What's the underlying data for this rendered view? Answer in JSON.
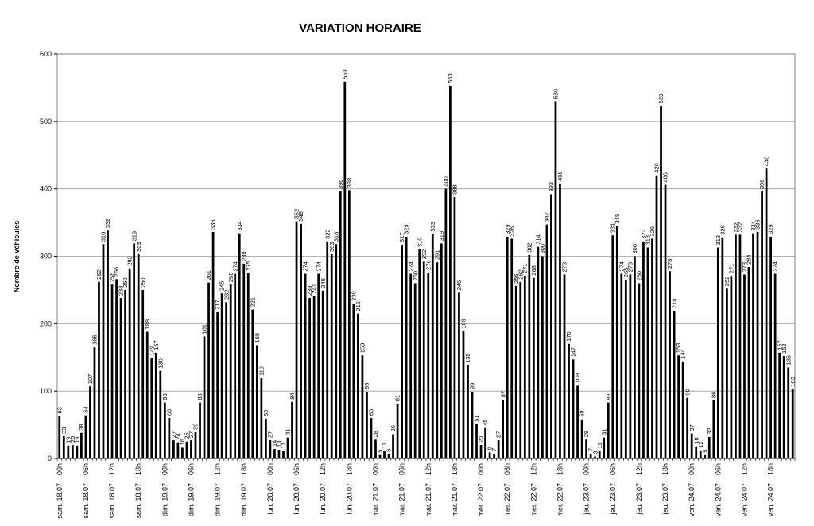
{
  "chart_data": {
    "type": "bar",
    "title": "VARIATION HORAIRE",
    "xlabel": "",
    "ylabel": "Nombre de véhicules",
    "ylim": [
      0,
      600
    ],
    "yticks": [
      0,
      100,
      200,
      300,
      400,
      500,
      600
    ],
    "grid": true,
    "legend": "none",
    "bar_color": "#000000",
    "x_tick_labels": [
      {
        "index": 0,
        "label": "sam. 18.07. : 00h"
      },
      {
        "index": 6,
        "label": "sam. 18.07. : 06h"
      },
      {
        "index": 12,
        "label": "sam. 18.07. : 12h"
      },
      {
        "index": 18,
        "label": "sam. 18.07. : 18h"
      },
      {
        "index": 24,
        "label": "dim. 19.07. : 00h"
      },
      {
        "index": 30,
        "label": "dim. 19.07. : 06h"
      },
      {
        "index": 36,
        "label": "dim. 19.07. : 12h"
      },
      {
        "index": 42,
        "label": "dim. 19.07. : 18h"
      },
      {
        "index": 48,
        "label": "lun. 20.07. : 00h"
      },
      {
        "index": 54,
        "label": "lun. 20.07. : 06h"
      },
      {
        "index": 60,
        "label": "lun. 20.07. : 12h"
      },
      {
        "index": 66,
        "label": "lun. 20.07. : 18h"
      },
      {
        "index": 72,
        "label": "mar. 21.07. : 00h"
      },
      {
        "index": 78,
        "label": "mar. 21.07. : 06h"
      },
      {
        "index": 84,
        "label": "mar. 21.07. : 12h"
      },
      {
        "index": 90,
        "label": "mar. 21.07. : 18h"
      },
      {
        "index": 96,
        "label": "mer. 22.07. : 00h"
      },
      {
        "index": 102,
        "label": "mer. 22.07. : 06h"
      },
      {
        "index": 108,
        "label": "mer. 22.07. : 12h"
      },
      {
        "index": 114,
        "label": "mer. 22.07. : 18h"
      },
      {
        "index": 120,
        "label": "jeu. 23.07. : 00h"
      },
      {
        "index": 126,
        "label": "jeu. 23.07. : 06h"
      },
      {
        "index": 132,
        "label": "jeu. 23.07. : 12h"
      },
      {
        "index": 138,
        "label": "jeu. 23.07. : 18h"
      },
      {
        "index": 144,
        "label": "ven. 24.07. : 00h"
      },
      {
        "index": 150,
        "label": "ven. 24.07. : 06h"
      },
      {
        "index": 156,
        "label": "ven. 24.07. : 12h"
      },
      {
        "index": 162,
        "label": "ven. 24.07. : 18h"
      }
    ],
    "values": [
      63,
      33,
      19,
      20,
      19,
      38,
      64,
      107,
      165,
      262,
      318,
      338,
      258,
      266,
      238,
      250,
      282,
      319,
      303,
      250,
      188,
      149,
      157,
      130,
      83,
      60,
      27,
      24,
      16,
      25,
      27,
      39,
      83,
      181,
      261,
      336,
      217,
      245,
      232,
      258,
      274,
      334,
      289,
      275,
      221,
      168,
      119,
      59,
      27,
      14,
      13,
      11,
      31,
      84,
      352,
      348,
      274,
      238,
      241,
      274,
      249,
      322,
      303,
      318,
      396,
      559,
      398,
      230,
      215,
      153,
      99,
      60,
      28,
      5,
      11,
      6,
      36,
      81,
      317,
      329,
      274,
      260,
      310,
      292,
      276,
      333,
      291,
      319,
      400,
      553,
      388,
      246,
      189,
      138,
      99,
      51,
      20,
      45,
      9,
      7,
      27,
      87,
      329,
      326,
      256,
      262,
      271,
      302,
      268,
      314,
      300,
      347,
      392,
      530,
      408,
      273,
      170,
      147,
      108,
      58,
      28,
      7,
      3,
      11,
      31,
      83,
      331,
      345,
      274,
      265,
      273,
      300,
      260,
      322,
      313,
      326,
      420,
      523,
      406,
      278,
      219,
      153,
      144,
      90,
      37,
      18,
      12,
      5,
      32,
      86,
      313,
      328,
      252,
      271,
      332,
      332,
      273,
      284,
      334,
      336,
      396,
      430,
      329,
      274,
      157,
      152,
      135,
      103
    ]
  }
}
